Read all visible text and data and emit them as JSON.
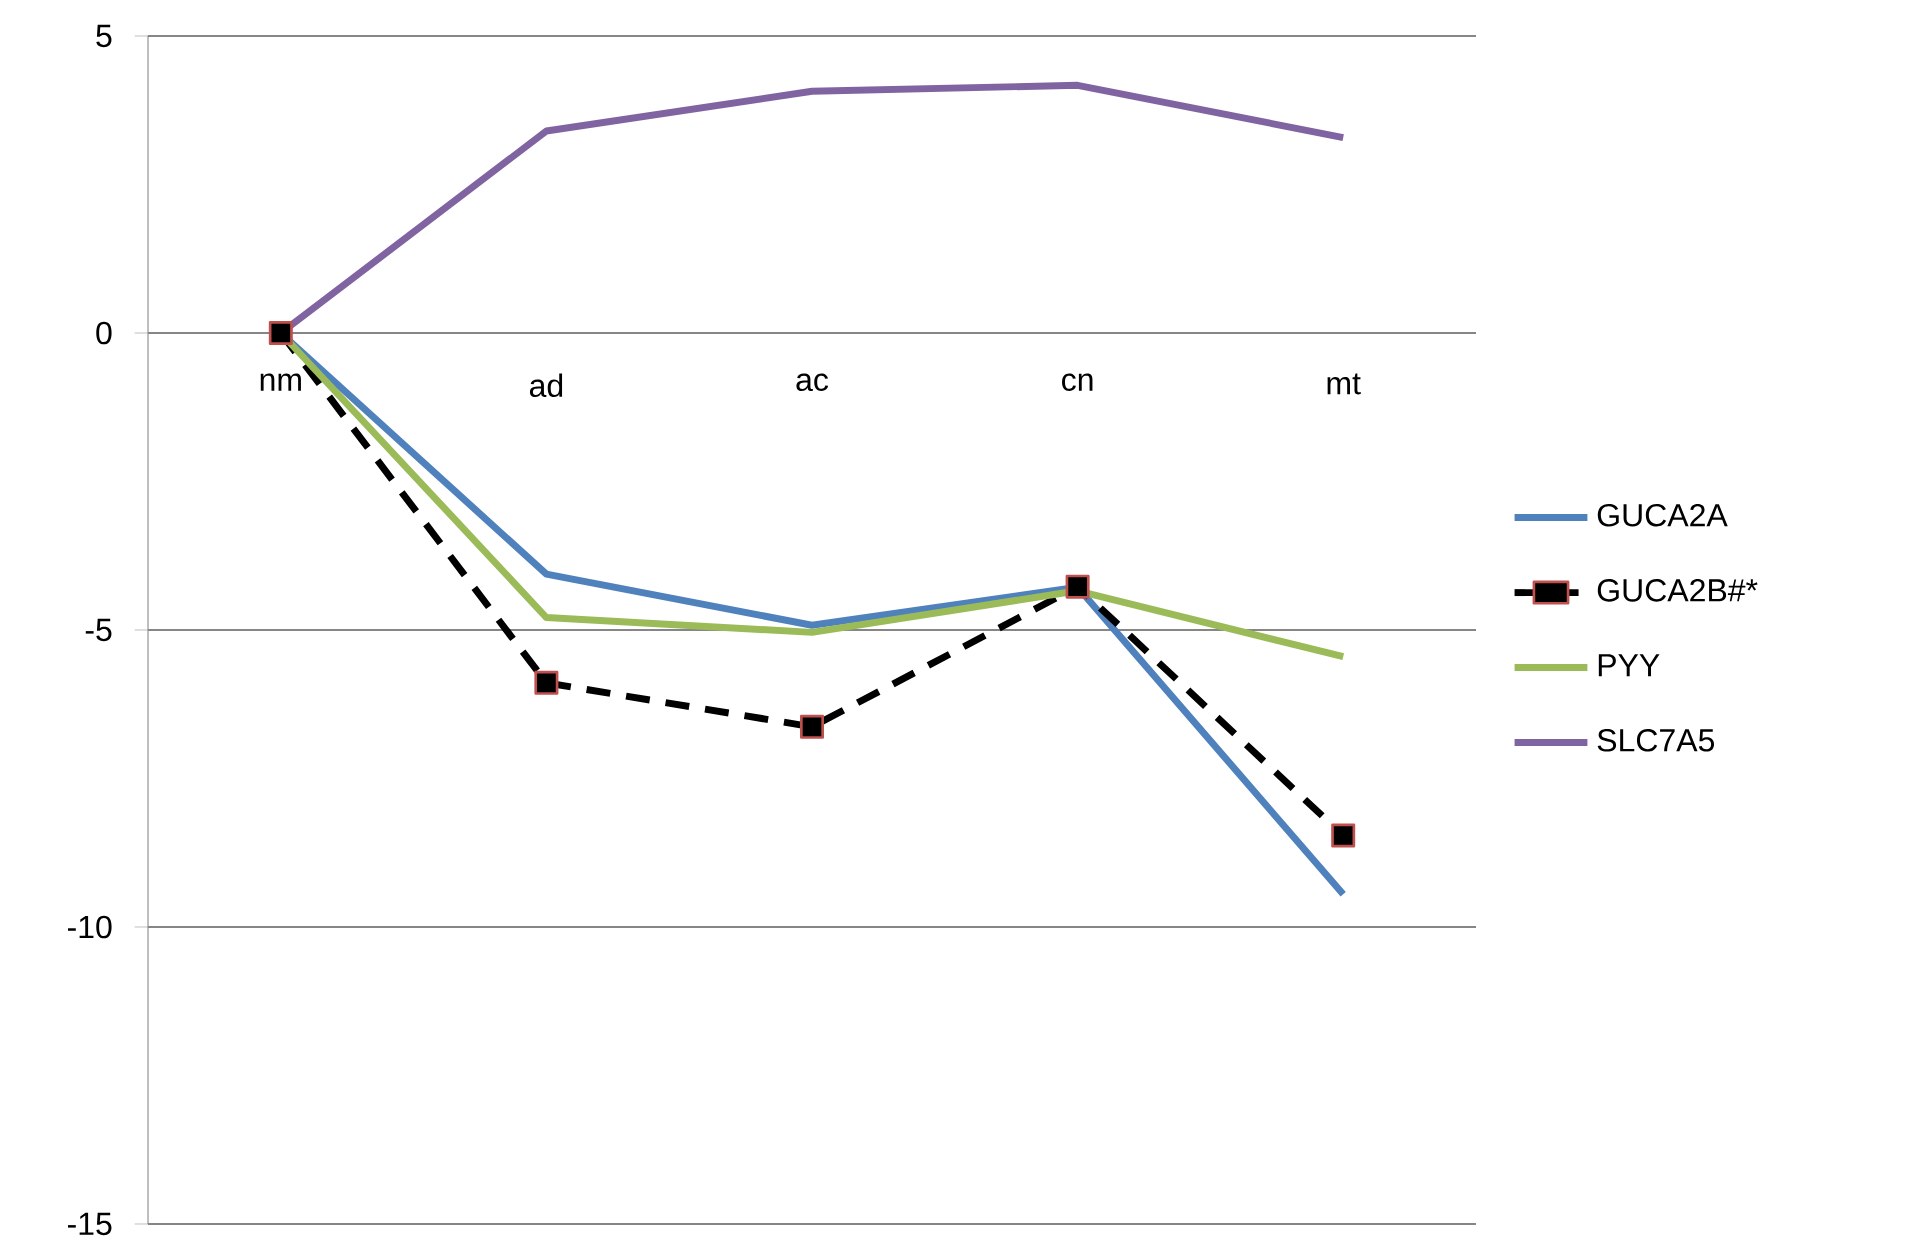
{
  "chart_data": {
    "type": "line",
    "categories": [
      "nm",
      "ad",
      "ac",
      "cn",
      "mt"
    ],
    "series": [
      {
        "name": "GUCA2A",
        "color": "#4f81bd",
        "values": [
          0,
          -4.06,
          -4.92,
          -4.28,
          -9.45
        ]
      },
      {
        "name": "GUCA2B#*",
        "color": "#000000",
        "values": [
          0,
          -5.89,
          -6.63,
          -4.27,
          -8.46
        ],
        "marker": "square",
        "line_style": "dashed"
      },
      {
        "name": "PYY",
        "color": "#9bbb59",
        "values": [
          0,
          -4.79,
          -5.04,
          -4.34,
          -5.45
        ]
      },
      {
        "name": "SLC7A5",
        "color": "#8064a2",
        "values": [
          0,
          3.4,
          4.07,
          4.17,
          3.29
        ]
      }
    ],
    "ylim": [
      -15,
      5
    ],
    "yticks": [
      -15,
      -10,
      -5,
      0,
      5
    ],
    "grid": "y",
    "legend": "right"
  }
}
